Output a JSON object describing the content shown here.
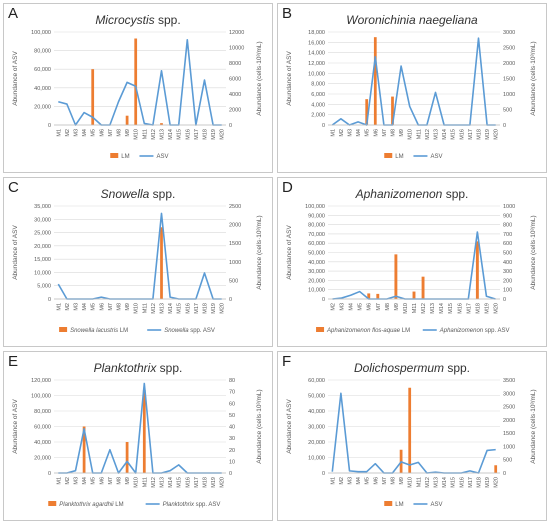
{
  "colors": {
    "lm": "#ED7D31",
    "asv": "#5B9BD5",
    "grid": "#D9D9D9",
    "text": "#595959"
  },
  "chart_data": [
    {
      "type": "bar+line",
      "panel_label": "A",
      "title": "Microcystis",
      "title_suffix": " spp.",
      "categories": [
        "M1",
        "M2",
        "M3",
        "M4",
        "M5",
        "M6",
        "M7",
        "M8",
        "M9",
        "M10",
        "M11",
        "M12",
        "M13",
        "M14",
        "M15",
        "M16",
        "M17",
        "M18",
        "M19",
        "M20"
      ],
      "ylabel": "Abundance of ASV",
      "y2label": "Abundance (cells·10³/mL)",
      "ylim": [
        0,
        100000
      ],
      "yticks": [
        0,
        20000,
        40000,
        60000,
        80000,
        100000
      ],
      "ytick_labels": [
        "0",
        "20,000",
        "40,000",
        "60,000",
        "80,000",
        "100,000"
      ],
      "y2lim": [
        0,
        12000
      ],
      "y2ticks": [
        0,
        2000,
        4000,
        6000,
        8000,
        10000,
        12000
      ],
      "y2tick_labels": [
        "0",
        "2000",
        "4000",
        "6000",
        "8000",
        "10000",
        "12000"
      ],
      "bar_series": {
        "name": "LM",
        "values": [
          0,
          0,
          0,
          0,
          60000,
          0,
          0,
          0,
          10000,
          93000,
          0,
          0,
          2000,
          0,
          0,
          0,
          0,
          0,
          0,
          0
        ]
      },
      "line_series": {
        "name": "ASV",
        "values": [
          3000,
          2700,
          0,
          1600,
          1000,
          0,
          0,
          3000,
          5500,
          5000,
          200,
          0,
          7000,
          0,
          0,
          11000,
          0,
          5800,
          0,
          0
        ]
      },
      "legend": [
        "LM",
        "ASV"
      ],
      "legend_position": "bottom"
    },
    {
      "type": "bar+line",
      "panel_label": "B",
      "title": "Woronichinia naegeliana",
      "title_suffix": "",
      "categories": [
        "M1",
        "M2",
        "M3",
        "M4",
        "M5",
        "M6",
        "M7",
        "M8",
        "M9",
        "M10",
        "M11",
        "M12",
        "M13",
        "M14",
        "M15",
        "M16",
        "M17",
        "M18",
        "M19",
        "M20"
      ],
      "ylabel": "Abundance of ASV",
      "y2label": "Abundance (cells·10³/mL)",
      "ylim": [
        0,
        18000
      ],
      "yticks": [
        0,
        2000,
        4000,
        6000,
        8000,
        10000,
        12000,
        14000,
        16000,
        18000
      ],
      "ytick_labels": [
        "0",
        "2,000",
        "4,000",
        "6,000",
        "8,000",
        "10,000",
        "12,000",
        "14,000",
        "16,000",
        "18,000"
      ],
      "y2lim": [
        0,
        3000
      ],
      "y2ticks": [
        0,
        500,
        1000,
        1500,
        2000,
        2500,
        3000
      ],
      "y2tick_labels": [
        "0",
        "500",
        "1000",
        "1500",
        "2000",
        "2500",
        "3000"
      ],
      "bar_series": {
        "name": "LM",
        "values": [
          0,
          0,
          0,
          0,
          5000,
          17000,
          0,
          5500,
          0,
          0,
          0,
          0,
          0,
          0,
          0,
          0,
          0,
          0,
          0,
          0
        ]
      },
      "line_series": {
        "name": "ASV",
        "values": [
          0,
          200,
          0,
          100,
          0,
          2200,
          0,
          0,
          1900,
          600,
          0,
          0,
          1050,
          0,
          0,
          0,
          0,
          2800,
          0,
          0
        ]
      },
      "legend": [
        "LM",
        "ASV"
      ],
      "legend_position": "bottom"
    },
    {
      "type": "bar+line",
      "panel_label": "C",
      "title": "Snowella",
      "title_suffix": " spp.",
      "categories": [
        "M1",
        "M2",
        "M3",
        "M4",
        "M5",
        "M6",
        "M7",
        "M8",
        "M9",
        "M10",
        "M11",
        "M12",
        "M13",
        "M14",
        "M15",
        "M16",
        "M17",
        "M18",
        "M19",
        "M20"
      ],
      "ylabel": "Abundance of ASV",
      "y2label": "Abundance (cells·10³/mL)",
      "ylim": [
        0,
        35000
      ],
      "yticks": [
        0,
        5000,
        10000,
        15000,
        20000,
        25000,
        30000,
        35000
      ],
      "ytick_labels": [
        "0",
        "5,000",
        "10,000",
        "15,000",
        "20,000",
        "25,000",
        "30,000",
        "35,000"
      ],
      "y2lim": [
        0,
        2500
      ],
      "y2ticks": [
        0,
        500,
        1000,
        1500,
        2000,
        2500
      ],
      "y2tick_labels": [
        "0",
        "500",
        "1000",
        "1500",
        "2000",
        "2500"
      ],
      "bar_series": {
        "name": "Snowella lacustris",
        "name_suffix": " LM",
        "values": [
          0,
          0,
          0,
          0,
          0,
          0,
          0,
          0,
          0,
          0,
          0,
          0,
          27000,
          0,
          0,
          0,
          0,
          0,
          0,
          0
        ]
      },
      "line_series": {
        "name": "Snowella",
        "name_suffix": " spp. ASV",
        "values": [
          400,
          0,
          0,
          0,
          0,
          50,
          0,
          0,
          0,
          0,
          0,
          0,
          2300,
          50,
          0,
          0,
          0,
          700,
          0,
          0
        ]
      },
      "legend": [
        "Snowella lacustris LM",
        "Snowella spp. ASV"
      ],
      "legend_position": "bottom"
    },
    {
      "type": "bar+line",
      "panel_label": "D",
      "title": "Aphanizomenon",
      "title_suffix": " spp.",
      "categories": [
        "M2",
        "M3",
        "M4",
        "M5",
        "M6",
        "M7",
        "M8",
        "M9",
        "M10",
        "M11",
        "M12",
        "M13",
        "M14",
        "M15",
        "M16",
        "M17",
        "M18",
        "M19",
        "M20"
      ],
      "ylabel": "Abundance of ASV",
      "y2label": "Abundance (cells·10³/mL)",
      "ylim": [
        0,
        100000
      ],
      "yticks": [
        0,
        10000,
        20000,
        30000,
        40000,
        50000,
        60000,
        70000,
        80000,
        90000,
        100000
      ],
      "ytick_labels": [
        "0",
        "10,000",
        "20,000",
        "30,000",
        "40,000",
        "50,000",
        "60,000",
        "70,000",
        "80,000",
        "90,000",
        "100,000"
      ],
      "y2lim": [
        0,
        1000
      ],
      "y2ticks": [
        0,
        100,
        200,
        300,
        400,
        500,
        600,
        700,
        800,
        900,
        1000
      ],
      "y2tick_labels": [
        "0",
        "100",
        "200",
        "300",
        "400",
        "500",
        "600",
        "700",
        "800",
        "900",
        "1000"
      ],
      "bar_series": {
        "name": "Aphanizomenon flos-aquae",
        "name_suffix": " LM",
        "values": [
          0,
          0,
          0,
          0,
          6000,
          5500,
          0,
          48000,
          0,
          8000,
          24000,
          0,
          0,
          0,
          0,
          0,
          62000,
          0,
          0
        ]
      },
      "line_series": {
        "name": "Aphanizomenon",
        "name_suffix": " spp. ASV",
        "values": [
          0,
          10,
          40,
          80,
          0,
          0,
          0,
          30,
          0,
          0,
          0,
          0,
          0,
          0,
          0,
          0,
          720,
          30,
          0
        ]
      },
      "legend": [
        "Aphanizomenon flos-aquae LM",
        "Aphanizomenon spp. ASV"
      ],
      "legend_position": "bottom"
    },
    {
      "type": "bar+line",
      "panel_label": "E",
      "title": "Planktothrix",
      "title_suffix": " spp.",
      "categories": [
        "M1",
        "M2",
        "M3",
        "M4",
        "M5",
        "M6",
        "M7",
        "M8",
        "M9",
        "M10",
        "M11",
        "M12",
        "M13",
        "M14",
        "M15",
        "M16",
        "M17",
        "M18",
        "M19",
        "M20"
      ],
      "ylabel": "Abundance of ASV",
      "y2label": "Abundance (cells·10³/mL)",
      "ylim": [
        0,
        120000
      ],
      "yticks": [
        0,
        20000,
        40000,
        60000,
        80000,
        100000,
        120000
      ],
      "ytick_labels": [
        "0",
        "20,000",
        "40,000",
        "60,000",
        "80,000",
        "100,000",
        "120,000"
      ],
      "y2lim": [
        0,
        80
      ],
      "y2ticks": [
        0,
        10,
        20,
        30,
        40,
        50,
        60,
        70,
        80
      ],
      "y2tick_labels": [
        "0",
        "10",
        "20",
        "30",
        "40",
        "50",
        "60",
        "70",
        "80"
      ],
      "bar_series": {
        "name": "Planktothrix agardhii",
        "name_suffix": " LM",
        "values": [
          0,
          0,
          0,
          60000,
          0,
          0,
          0,
          0,
          40000,
          0,
          107000,
          0,
          0,
          0,
          0,
          0,
          0,
          0,
          0,
          0
        ]
      },
      "line_series": {
        "name": "Planktothrix",
        "name_suffix": " spp. ASV",
        "values": [
          0,
          0,
          2,
          38,
          0,
          0,
          20,
          0,
          10,
          0,
          77,
          0,
          0,
          2,
          7,
          0,
          0,
          0,
          0,
          0
        ]
      },
      "legend": [
        "Planktothrix agardhii LM",
        "Planktothrix spp. ASV"
      ],
      "legend_position": "bottom"
    },
    {
      "type": "bar+line",
      "panel_label": "F",
      "title": "Dolichospermum",
      "title_suffix": " spp.",
      "categories": [
        "M1",
        "M2",
        "M3",
        "M4",
        "M5",
        "M6",
        "M7",
        "M8",
        "M9",
        "M10",
        "M11",
        "M12",
        "M13",
        "M14",
        "M15",
        "M16",
        "M17",
        "M18",
        "M19",
        "M20"
      ],
      "ylabel": "Abundance of ASV",
      "y2label": "Abundance (cells·10³/mL)",
      "ylim": [
        0,
        60000
      ],
      "yticks": [
        0,
        10000,
        20000,
        30000,
        40000,
        50000,
        60000
      ],
      "ytick_labels": [
        "0",
        "10,000",
        "20,000",
        "30,000",
        "40,000",
        "50,000",
        "60,000"
      ],
      "y2lim": [
        0,
        3500
      ],
      "y2ticks": [
        0,
        500,
        1000,
        1500,
        2000,
        2500,
        3000,
        3500
      ],
      "y2tick_labels": [
        "0",
        "500",
        "1000",
        "1500",
        "2000",
        "2500",
        "3000",
        "3500"
      ],
      "bar_series": {
        "name": "LM",
        "values": [
          0,
          0,
          0,
          0,
          0,
          0,
          0,
          0,
          15000,
          55000,
          0,
          0,
          0,
          0,
          0,
          0,
          0,
          0,
          0,
          5000
        ]
      },
      "line_series": {
        "name": "ASV",
        "values": [
          50,
          3000,
          80,
          50,
          50,
          350,
          0,
          0,
          420,
          300,
          400,
          0,
          30,
          0,
          0,
          0,
          80,
          0,
          850,
          880
        ]
      },
      "legend": [
        "LM",
        "ASV"
      ],
      "legend_position": "bottom"
    }
  ]
}
